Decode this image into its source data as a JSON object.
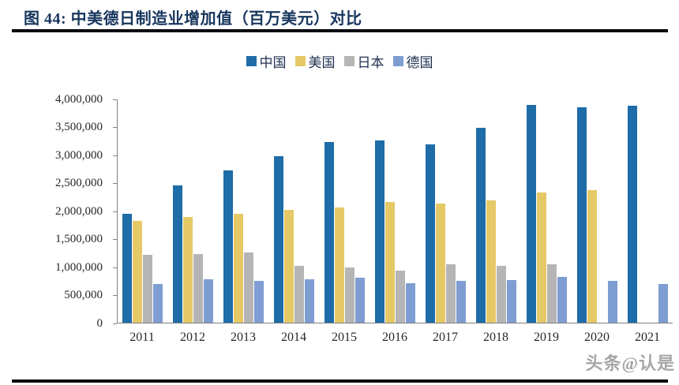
{
  "figure": {
    "title": "图 44: 中美德日制造业增加值（百万美元）对比",
    "watermark": "头条@认是"
  },
  "colors": {
    "title_text": "#17365D",
    "rule": "#07090f",
    "axis_line": "#808080",
    "axis_text": "#262626",
    "legend_text": "#1F3050",
    "watermark_text": "#a6a6a6",
    "china": "#1E6CA8",
    "us": "#E6C967",
    "japan": "#B5B5B5",
    "germany": "#7E9DD2"
  },
  "chart_data": {
    "type": "bar",
    "title": "中美德日制造业增加值（百万美元）对比",
    "xlabel": "",
    "ylabel": "",
    "ylim": [
      0,
      4000000
    ],
    "ytick_step": 500000,
    "ytick_labels": [
      "0",
      "500,000",
      "1,000,000",
      "1,500,000",
      "2,000,000",
      "2,500,000",
      "3,000,000",
      "3,500,000",
      "4,000,000"
    ],
    "grid": false,
    "legend_position": "top",
    "categories": [
      "2011",
      "2012",
      "2013",
      "2014",
      "2015",
      "2016",
      "2017",
      "2018",
      "2019",
      "2020",
      "2021"
    ],
    "series": [
      {
        "name": "中国",
        "key": "china",
        "color": "#1E6CA8",
        "values": [
          1950000,
          2450000,
          2720000,
          2970000,
          3220000,
          3250000,
          3180000,
          3480000,
          3890000,
          3850000,
          3870000
        ]
      },
      {
        "name": "美国",
        "key": "us",
        "color": "#E6C967",
        "values": [
          1820000,
          1890000,
          1940000,
          2010000,
          2060000,
          2150000,
          2120000,
          2190000,
          2330000,
          2370000,
          null
        ]
      },
      {
        "name": "日本",
        "key": "japan",
        "color": "#B5B5B5",
        "values": [
          1210000,
          1230000,
          1250000,
          1010000,
          980000,
          930000,
          1040000,
          1020000,
          1040000,
          null,
          null
        ]
      },
      {
        "name": "德国",
        "key": "germany",
        "color": "#7E9DD2",
        "values": [
          690000,
          780000,
          740000,
          780000,
          800000,
          700000,
          740000,
          760000,
          810000,
          750000,
          690000
        ]
      }
    ]
  }
}
